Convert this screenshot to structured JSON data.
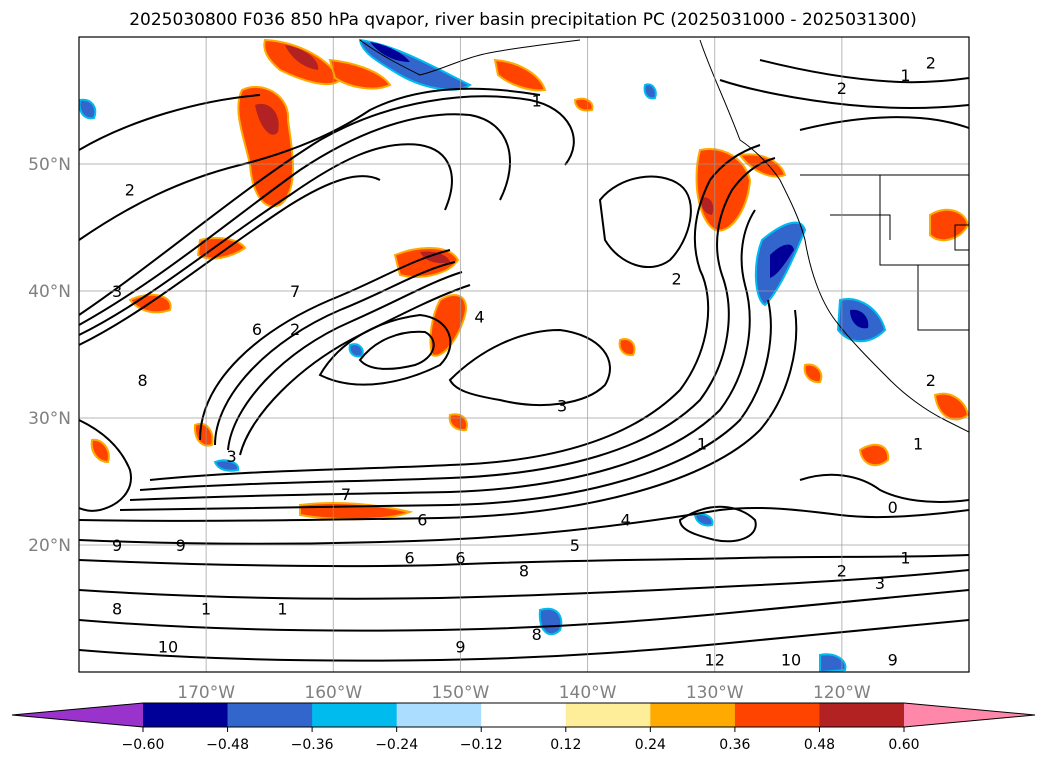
{
  "chart_data": {
    "type": "contour-map",
    "title": "2025030800 F036 850 hPa qvapor, river basin precipitation PC (2025031000 - 2025031300)",
    "lat_ticks": [
      {
        "value": 20,
        "label": "20°N"
      },
      {
        "value": 30,
        "label": "30°N"
      },
      {
        "value": 40,
        "label": "40°N"
      },
      {
        "value": 50,
        "label": "50°N"
      }
    ],
    "lon_ticks": [
      {
        "value": -170,
        "label": "170°W"
      },
      {
        "value": -160,
        "label": "160°W"
      },
      {
        "value": -150,
        "label": "150°W"
      },
      {
        "value": -140,
        "label": "140°W"
      },
      {
        "value": -130,
        "label": "130°W"
      },
      {
        "value": -120,
        "label": "120°W"
      }
    ],
    "lon_range": [
      -180,
      -110
    ],
    "lat_range": [
      10,
      60
    ],
    "grid": true,
    "colorbar": {
      "extend": "both",
      "levels": [
        -0.72,
        -0.6,
        -0.48,
        -0.36,
        -0.24,
        -0.12,
        0.12,
        0.24,
        0.36,
        0.48,
        0.6,
        0.72
      ],
      "tick_labels": [
        "−0.60",
        "−0.48",
        "−0.36",
        "−0.24",
        "−0.12",
        "0.12",
        "0.24",
        "0.36",
        "0.48",
        "0.60"
      ],
      "colors": [
        "#9933cc",
        "#000099",
        "#3366cc",
        "#00bbee",
        "#aaddff",
        "#ffffff",
        "#ffee99",
        "#ffaa00",
        "#ff4400",
        "#b22222",
        "#ff88aa"
      ],
      "under_color": "#9933cc",
      "over_color": "#ff88aa"
    },
    "contour_labels": [
      {
        "lon": -163,
        "lat": 40,
        "text": "7"
      },
      {
        "lon": -176,
        "lat": 48,
        "text": "2"
      },
      {
        "lon": -166,
        "lat": 37,
        "text": "6"
      },
      {
        "lon": -163,
        "lat": 37,
        "text": "2"
      },
      {
        "lon": -175,
        "lat": 33,
        "text": "8"
      },
      {
        "lon": -148.5,
        "lat": 38,
        "text": "4"
      },
      {
        "lon": -133,
        "lat": 41,
        "text": "2"
      },
      {
        "lon": -142,
        "lat": 31,
        "text": "3"
      },
      {
        "lon": -120,
        "lat": 56,
        "text": "2"
      },
      {
        "lon": -115,
        "lat": 57,
        "text": "1"
      },
      {
        "lon": -113,
        "lat": 58,
        "text": "2"
      },
      {
        "lon": -144,
        "lat": 55,
        "text": "1"
      },
      {
        "lon": -168,
        "lat": 27,
        "text": "3"
      },
      {
        "lon": -159,
        "lat": 24,
        "text": "7"
      },
      {
        "lon": -153,
        "lat": 22,
        "text": "6"
      },
      {
        "lon": -131,
        "lat": 28,
        "text": "1"
      },
      {
        "lon": -116,
        "lat": 23,
        "text": "0"
      },
      {
        "lon": -115,
        "lat": 19,
        "text": "1"
      },
      {
        "lon": -120,
        "lat": 18,
        "text": "2"
      },
      {
        "lon": -117,
        "lat": 17,
        "text": "3"
      },
      {
        "lon": -141,
        "lat": 20,
        "text": "5"
      },
      {
        "lon": -137,
        "lat": 22,
        "text": "4"
      },
      {
        "lon": -154,
        "lat": 19,
        "text": "6"
      },
      {
        "lon": -150,
        "lat": 19,
        "text": "6"
      },
      {
        "lon": -177,
        "lat": 15,
        "text": "8"
      },
      {
        "lon": -173,
        "lat": 12,
        "text": "10"
      },
      {
        "lon": -177,
        "lat": 20,
        "text": "9"
      },
      {
        "lon": -172,
        "lat": 20,
        "text": "9"
      },
      {
        "lon": -170,
        "lat": 15,
        "text": "1"
      },
      {
        "lon": -164,
        "lat": 15,
        "text": "1"
      },
      {
        "lon": -150,
        "lat": 12,
        "text": "9"
      },
      {
        "lon": -144,
        "lat": 13,
        "text": "8"
      },
      {
        "lon": -145,
        "lat": 18,
        "text": "8"
      },
      {
        "lon": -130,
        "lat": 11,
        "text": "12"
      },
      {
        "lon": -124,
        "lat": 11,
        "text": "10"
      },
      {
        "lon": -116,
        "lat": 11,
        "text": "9"
      },
      {
        "lon": -177,
        "lat": 40,
        "text": "3"
      },
      {
        "lon": -113,
        "lat": 33,
        "text": "2"
      },
      {
        "lon": -114,
        "lat": 28,
        "text": "1"
      }
    ]
  }
}
